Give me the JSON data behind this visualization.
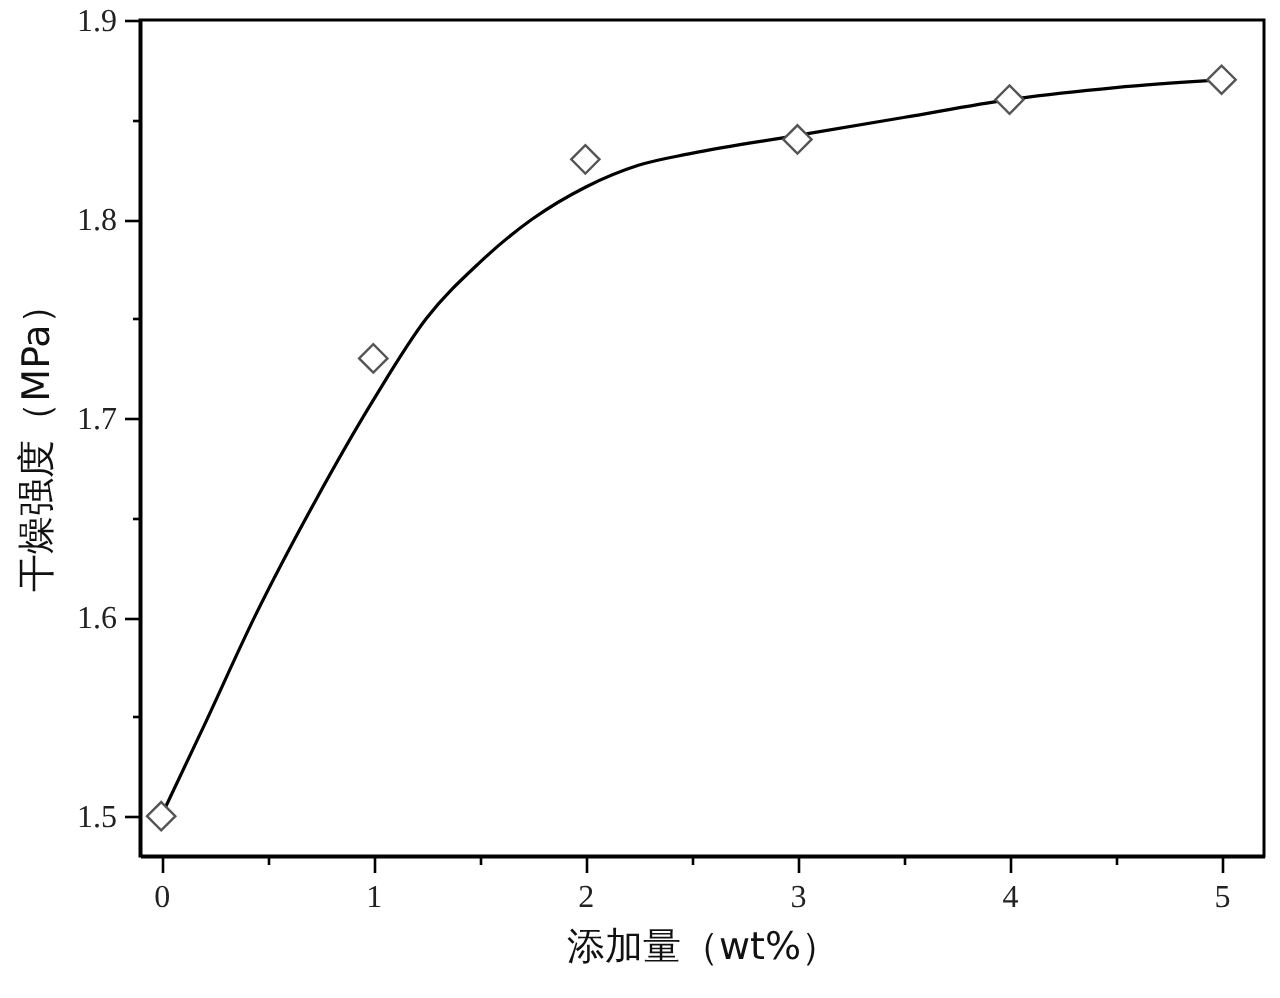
{
  "chart_data": {
    "type": "scatter",
    "xlabel": "添加量（wt%）",
    "ylabel": "干燥强度（MPa）",
    "xlim": [
      -0.1,
      5.2
    ],
    "ylim": [
      1.48,
      1.9
    ],
    "xticks": [
      0,
      {
        "value": 0.5,
        "label": null
      },
      1,
      {
        "value": 1.5,
        "label": null
      },
      2,
      {
        "value": 2.5,
        "label": null
      },
      3,
      {
        "value": 3.5,
        "label": null
      },
      4,
      {
        "value": 4.5,
        "label": null
      },
      5
    ],
    "yticks": [
      1.5,
      {
        "value": 1.55,
        "label": null
      },
      1.6,
      {
        "value": 1.65,
        "label": null
      },
      1.7,
      {
        "value": 1.75,
        "label": null
      },
      1.8,
      {
        "value": 1.85,
        "label": null
      },
      1.9
    ],
    "series": [
      {
        "type": "line",
        "color": "#000000",
        "x": [
          0,
          0.2,
          0.44,
          0.73,
          1.0,
          1.25,
          1.5,
          1.75,
          2.0,
          2.25,
          2.5,
          3.0,
          3.5,
          4.0,
          4.5,
          5.0
        ],
        "values": [
          1.5,
          1.545,
          1.6,
          1.659,
          1.709,
          1.75,
          1.778,
          1.8,
          1.816,
          1.827,
          1.833,
          1.842,
          1.851,
          1.86,
          1.866,
          1.87
        ]
      },
      {
        "color": "#555555",
        "marker": "diamond",
        "x": [
          0,
          1,
          2,
          3,
          4,
          5
        ],
        "values": [
          1.5,
          1.73,
          1.83,
          1.84,
          1.86,
          1.87
        ]
      }
    ]
  }
}
